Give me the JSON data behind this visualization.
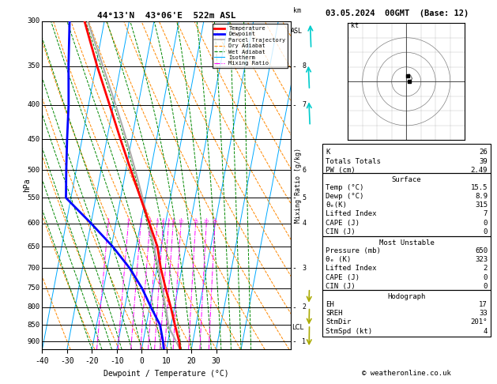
{
  "title_left": "44°13'N  43°06'E  522m ASL",
  "title_right": "03.05.2024  00GMT  (Base: 12)",
  "xlabel": "Dewpoint / Temperature (°C)",
  "ylabel_left": "hPa",
  "copyright": "© weatheronline.co.uk",
  "pressure_levels": [
    300,
    350,
    400,
    450,
    500,
    550,
    600,
    650,
    700,
    750,
    800,
    850,
    900
  ],
  "pmin": 300,
  "pmax": 925,
  "T_min": -40,
  "T_max": 35,
  "skew": 25,
  "legend_entries": [
    {
      "label": "Temperature",
      "color": "#ff0000",
      "lw": 2.0,
      "ls": "-"
    },
    {
      "label": "Dewpoint",
      "color": "#0000ff",
      "lw": 2.0,
      "ls": "-"
    },
    {
      "label": "Parcel Trajectory",
      "color": "#aaaaaa",
      "lw": 1.2,
      "ls": "-"
    },
    {
      "label": "Dry Adiabat",
      "color": "#ff8800",
      "lw": 0.8,
      "ls": "--"
    },
    {
      "label": "Wet Adiabat",
      "color": "#008800",
      "lw": 0.8,
      "ls": "--"
    },
    {
      "label": "Isotherm",
      "color": "#00aaff",
      "lw": 0.8,
      "ls": "-"
    },
    {
      "label": "Mixing Ratio",
      "color": "#ff00ff",
      "lw": 0.8,
      "ls": "-."
    }
  ],
  "stats_K": 26,
  "stats_TT": 39,
  "stats_PW": 2.49,
  "surface_temp": 15.5,
  "surface_dewp": 8.9,
  "surface_theta": 315,
  "surface_LI": 7,
  "surface_CAPE": 0,
  "surface_CIN": 0,
  "MU_pressure": 650,
  "MU_theta": 323,
  "MU_LI": 2,
  "MU_CAPE": 0,
  "MU_CIN": 0,
  "hodo_EH": 17,
  "hodo_SREH": 33,
  "hodo_StmDir": "201°",
  "hodo_StmSpd": 4,
  "bg_color": "#ffffff",
  "isotherm_color": "#00aaff",
  "dry_adiabat_color": "#ff8800",
  "wet_adiabat_color": "#008800",
  "mixing_ratio_color": "#ff00ff",
  "temp_color": "#ff0000",
  "dewpoint_color": "#0000ff",
  "parcel_color": "#aaaaaa",
  "T_sounding_p": [
    925,
    900,
    850,
    800,
    750,
    700,
    650,
    600,
    550,
    500,
    450,
    400,
    350,
    300
  ],
  "T_sounding_T": [
    15.5,
    14.5,
    11.5,
    8.5,
    5.0,
    1.5,
    -1.5,
    -6.5,
    -12.0,
    -18.0,
    -24.5,
    -31.5,
    -39.5,
    -48.0
  ],
  "Td_sounding_T": [
    8.9,
    8.0,
    5.5,
    0.5,
    -4.5,
    -11.0,
    -19.5,
    -30.0,
    -42.0,
    -44.0,
    -46.0,
    -48.0,
    -51.0,
    -54.0
  ],
  "plcl": 858,
  "km_labels": {
    "1": 900,
    "2": 800,
    "3": 700,
    "4": 600,
    "5": 550,
    "6": 500,
    "7": 400,
    "8": 350
  }
}
